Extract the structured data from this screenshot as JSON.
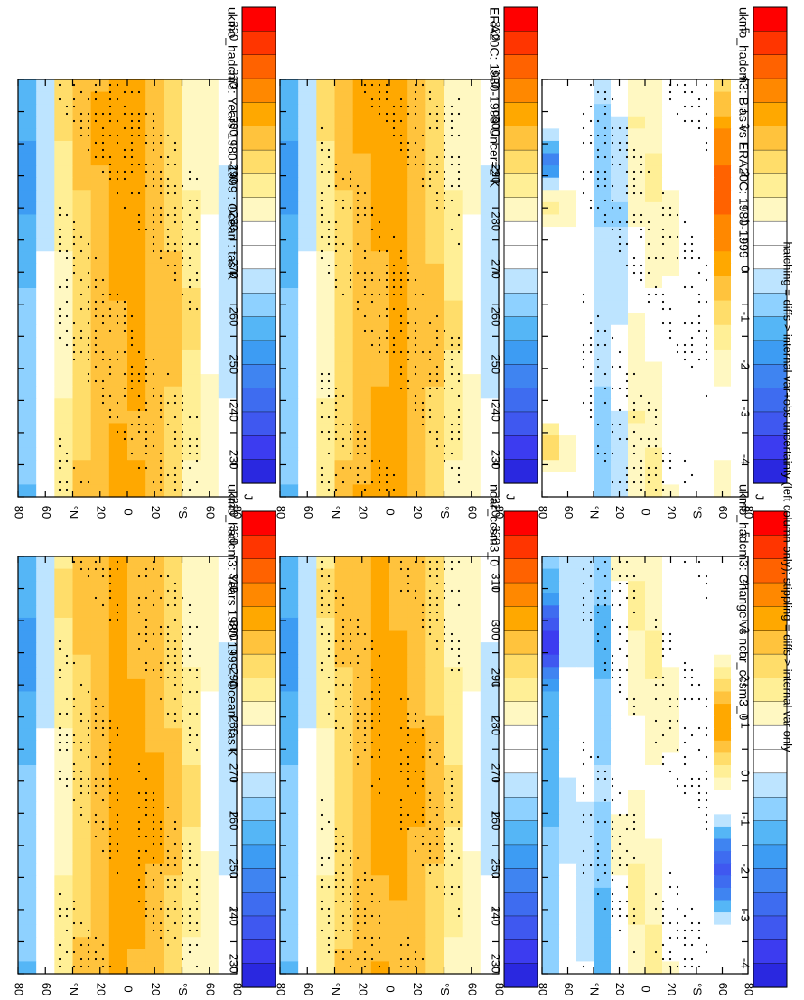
{
  "chart_data": [
    {
      "type": "heatmap",
      "title": "ukmo_hadcm3: Years 1980-1999 : Ocean : tas K",
      "x": [
        "D",
        "J",
        "F",
        "M",
        "A",
        "M",
        "J",
        "J",
        "A",
        "S",
        "O",
        "N",
        "D",
        "J"
      ],
      "y": [
        "80",
        "60",
        "°N",
        "20",
        "0",
        "20",
        "°S",
        "60",
        "80"
      ],
      "colorbar": [
        "320",
        "310",
        "300",
        "290",
        "280",
        "270",
        "260",
        "250",
        "240",
        "230",
        "220"
      ],
      "overlay": "stippling",
      "field": "abs",
      "variant": 0
    },
    {
      "type": "heatmap",
      "title": "ukmo_hadcm3: Years 1980-1999 : Ocean : tas K",
      "x": [
        "D",
        "J",
        "F",
        "M",
        "A",
        "M",
        "J",
        "J",
        "A",
        "S",
        "O",
        "N",
        "D",
        "J"
      ],
      "y": [
        "80",
        "60",
        "°N",
        "20",
        "0",
        "20",
        "°S",
        "60",
        "80"
      ],
      "colorbar": [
        "320",
        "310",
        "300",
        "290",
        "280",
        "270",
        "260",
        "250",
        "240",
        "230",
        "220"
      ],
      "overlay": "stippling",
      "field": "abs",
      "variant": 1
    },
    {
      "type": "heatmap",
      "title": "ERA20C: 1980-1999 Uncer=2 K",
      "x": [
        "D",
        "J",
        "F",
        "M",
        "A",
        "M",
        "J",
        "J",
        "A",
        "S",
        "O",
        "N",
        "D",
        "J"
      ],
      "y": [
        "80",
        "60",
        "°N",
        "20",
        "0",
        "20",
        "°S",
        "60",
        "80"
      ],
      "colorbar": [
        "320",
        "310",
        "300",
        "290",
        "280",
        "270",
        "260",
        "250",
        "240",
        "230",
        "220"
      ],
      "overlay": "stippling",
      "field": "abs",
      "variant": 2
    },
    {
      "type": "heatmap",
      "title": "ncar_ccsm3_0",
      "x": [
        "D",
        "J",
        "F",
        "M",
        "A",
        "M",
        "J",
        "J",
        "A",
        "S",
        "O",
        "N",
        "D",
        "J"
      ],
      "y": [
        "80",
        "60",
        "°N",
        "20",
        "0",
        "20",
        "°S",
        "60",
        "80"
      ],
      "colorbar": [
        "320",
        "310",
        "300",
        "290",
        "280",
        "270",
        "260",
        "250",
        "240",
        "230",
        "220"
      ],
      "overlay": "stippling",
      "field": "abs",
      "variant": 3
    },
    {
      "type": "heatmap",
      "title": "ukmo_hadcm3: Bias vs ERA20C: 1980-1999",
      "x": [
        "D",
        "J",
        "F",
        "M",
        "A",
        "M",
        "J",
        "J",
        "A",
        "S",
        "O",
        "N",
        "D",
        "J"
      ],
      "y": [
        "80",
        "60",
        "°N",
        "20",
        "0",
        "20",
        "°S",
        "60",
        "80"
      ],
      "colorbar": [
        "5",
        "4",
        "3",
        "2",
        "1",
        "0",
        "-1",
        "-2",
        "-3",
        "-4",
        "-5"
      ],
      "overlay": "stippling",
      "field": "diff",
      "variant": 4
    },
    {
      "type": "heatmap",
      "title": "ukmo_hadcm3: Change vs ncar_ccsm3_0",
      "x": [
        "D",
        "J",
        "F",
        "M",
        "A",
        "M",
        "J",
        "J",
        "A",
        "S",
        "O",
        "N",
        "D",
        "J"
      ],
      "y": [
        "80",
        "60",
        "°N",
        "20",
        "0",
        "20",
        "°S",
        "60",
        "80"
      ],
      "colorbar": [
        "5",
        "4",
        "3",
        "2",
        "1",
        "0",
        "-1",
        "-2",
        "-3",
        "-4",
        "-5"
      ],
      "overlay": "stippling",
      "field": "diff",
      "variant": 5
    }
  ],
  "colors": {
    "ramp": [
      "#ff0000",
      "#ff3500",
      "#ff6200",
      "#ff8800",
      "#ffa800",
      "#ffc33d",
      "#ffdd6a",
      "#ffef96",
      "#fff8c2",
      "#ffffff",
      "#ffffff",
      "#bde4ff",
      "#8ed1ff",
      "#55b6f6",
      "#3d9cf3",
      "#3f84f1",
      "#3e6cf0",
      "#3f58f0",
      "#3c3cf0",
      "#2a28e0"
    ]
  },
  "footer": "hatching = diffs > internal var+obs uncertainty (left column only); stippling = diffs > internal var only"
}
